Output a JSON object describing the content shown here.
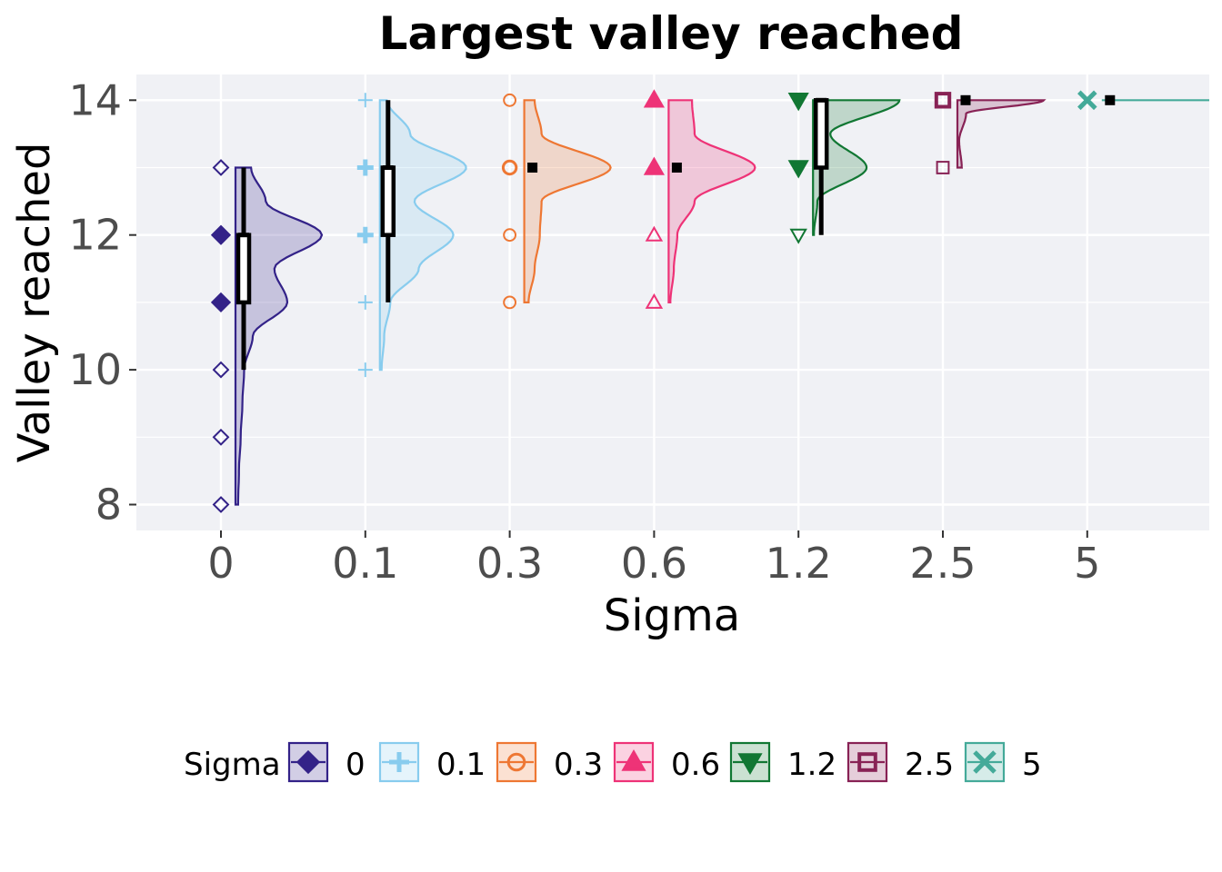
{
  "chart_data": {
    "type": "raincloud",
    "title": "Largest valley reached",
    "xlabel": "Sigma",
    "ylabel": "Valley reached",
    "categories": [
      "0",
      "0.1",
      "0.3",
      "0.6",
      "1.2",
      "2.5",
      "5"
    ],
    "yticks": [
      8,
      10,
      12,
      14
    ],
    "ylim": [
      7.6,
      14.4
    ],
    "grid": true,
    "legend": {
      "title": "Sigma",
      "position": "bottom"
    },
    "series": [
      {
        "name": "0",
        "color": "#332288",
        "marker": "diamond",
        "points": [
          8,
          9,
          10,
          11,
          12,
          13
        ],
        "density": [
          [
            8,
            0.03
          ],
          [
            8.5,
            0.04
          ],
          [
            9,
            0.06
          ],
          [
            9.5,
            0.08
          ],
          [
            10,
            0.1
          ],
          [
            10.5,
            0.2
          ],
          [
            11,
            0.6
          ],
          [
            11.5,
            0.45
          ],
          [
            12,
            1.0
          ],
          [
            12.5,
            0.35
          ],
          [
            13,
            0.18
          ]
        ],
        "box": {
          "q1": 11,
          "median": 12,
          "q3": 12,
          "min": 10,
          "max": 13
        },
        "mean": null
      },
      {
        "name": "0.1",
        "color": "#88CCEE",
        "marker": "plus",
        "points": [
          10,
          11,
          12,
          13,
          14
        ],
        "density": [
          [
            10,
            0.02
          ],
          [
            10.5,
            0.05
          ],
          [
            11,
            0.12
          ],
          [
            11.5,
            0.45
          ],
          [
            12,
            0.85
          ],
          [
            12.5,
            0.4
          ],
          [
            13,
            1.0
          ],
          [
            13.5,
            0.35
          ],
          [
            14,
            0.08
          ]
        ],
        "box": {
          "q1": 12,
          "median": 13,
          "q3": 13,
          "min": 11,
          "max": 14
        },
        "mean": null
      },
      {
        "name": "0.3",
        "color": "#EE7733",
        "marker": "circle",
        "points": [
          11,
          12,
          13,
          14
        ],
        "density": [
          [
            11,
            0.05
          ],
          [
            11.5,
            0.12
          ],
          [
            12,
            0.18
          ],
          [
            12.5,
            0.2
          ],
          [
            13,
            1.0
          ],
          [
            13.5,
            0.2
          ],
          [
            14,
            0.12
          ]
        ],
        "box": null,
        "mean": 13
      },
      {
        "name": "0.6",
        "color": "#EE3377",
        "marker": "triangle-up",
        "points": [
          11,
          12,
          13,
          14
        ],
        "density": [
          [
            11,
            0.02
          ],
          [
            11.5,
            0.06
          ],
          [
            12,
            0.1
          ],
          [
            12.5,
            0.3
          ],
          [
            13,
            1.0
          ],
          [
            13.5,
            0.3
          ],
          [
            14,
            0.27
          ]
        ],
        "box": null,
        "mean": 13
      },
      {
        "name": "1.2",
        "color": "#117733",
        "marker": "triangle-down",
        "points": [
          12,
          13,
          14
        ],
        "density": [
          [
            12,
            0.01
          ],
          [
            12.5,
            0.05
          ],
          [
            13,
            0.62
          ],
          [
            13.5,
            0.2
          ],
          [
            14,
            1.0
          ]
        ],
        "box": {
          "q1": 13,
          "median": 14,
          "q3": 14,
          "min": 12,
          "max": 14
        },
        "mean": null
      },
      {
        "name": "2.5",
        "color": "#882255",
        "marker": "square",
        "points": [
          13,
          14
        ],
        "density": [
          [
            13,
            0.05
          ],
          [
            13.4,
            0.02
          ],
          [
            13.8,
            0.1
          ],
          [
            14,
            1.0
          ]
        ],
        "box": null,
        "mean": 14
      },
      {
        "name": "5",
        "color": "#44AA99",
        "marker": "x",
        "points": [
          14
        ],
        "density": [
          [
            14,
            1.0
          ]
        ],
        "box": null,
        "mean": 14
      }
    ]
  }
}
